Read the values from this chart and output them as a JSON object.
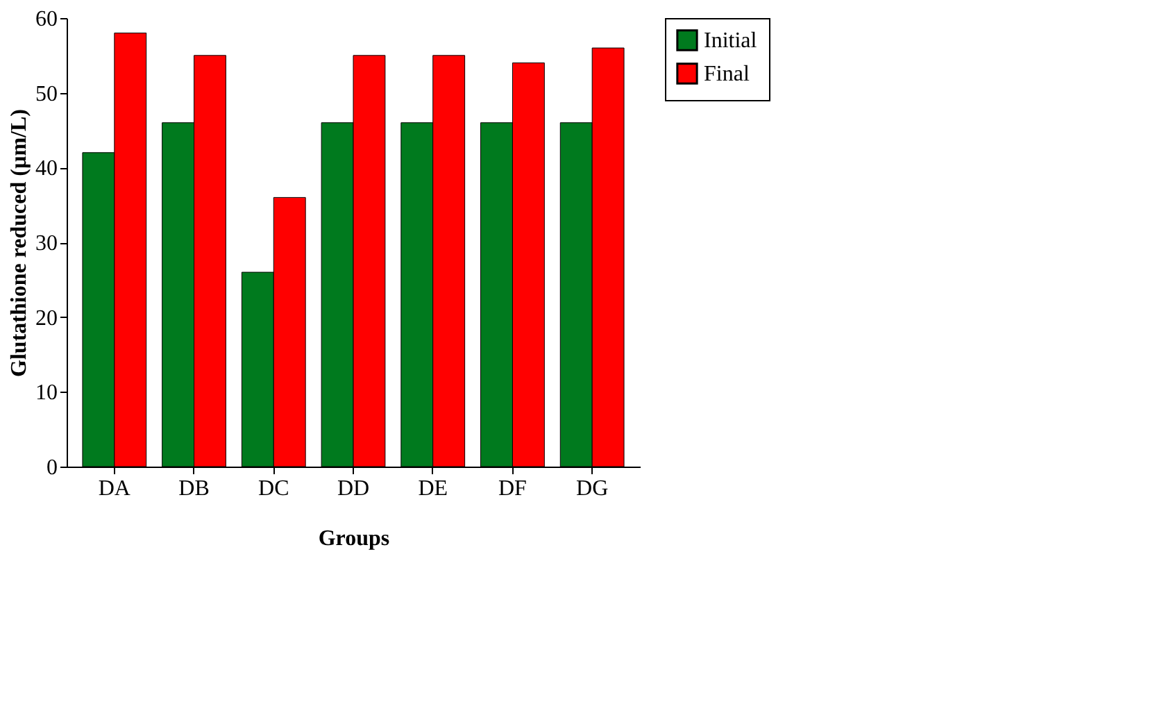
{
  "chart_data": {
    "type": "bar",
    "xlabel": "Groups",
    "ylabel": "Glutathione reduced (µm/L)",
    "categories": [
      "DA",
      "DB",
      "DC",
      "DD",
      "DE",
      "DF",
      "DG"
    ],
    "series": [
      {
        "name": "Initial",
        "color": "#007a1e",
        "values": [
          42,
          46,
          26,
          46,
          46,
          46,
          46
        ]
      },
      {
        "name": "Final",
        "color": "#ff0000",
        "values": [
          58,
          55,
          36,
          55,
          55,
          54,
          56
        ]
      }
    ],
    "ylim": [
      0,
      60
    ],
    "yticks": [
      0,
      10,
      20,
      30,
      40,
      50,
      60
    ],
    "grid": false,
    "legend": "right"
  }
}
